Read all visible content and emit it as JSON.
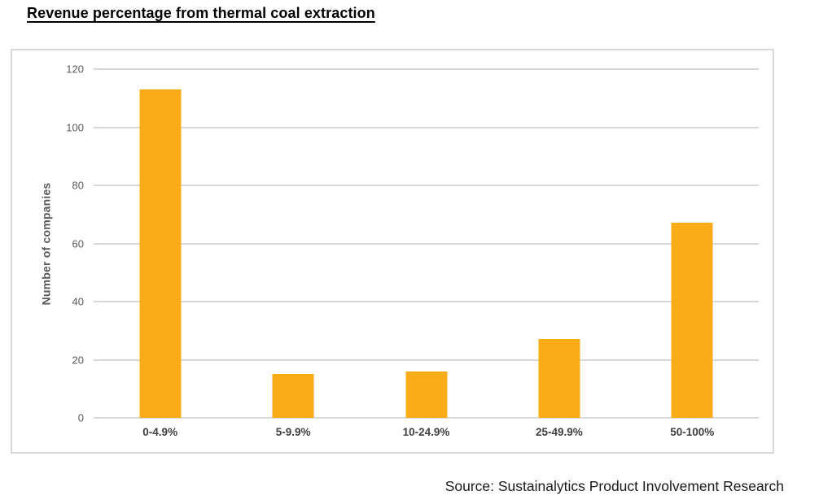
{
  "page": {
    "title": "Revenue percentage from thermal coal extraction",
    "source": "Source: Sustainalytics Product Involvement Research"
  },
  "chart_data": {
    "type": "bar",
    "title": "Revenue percentage from thermal coal extraction",
    "categories": [
      "0-4.9%",
      "5-9.9%",
      "10-24.9%",
      "25-49.9%",
      "50-100%"
    ],
    "values": [
      113,
      15,
      16,
      27,
      67
    ],
    "xlabel": "",
    "ylabel": "Number of companies",
    "ylim": [
      0,
      120
    ],
    "yticks": [
      0,
      20,
      40,
      60,
      80,
      100,
      120
    ],
    "grid": true,
    "legend": "none",
    "bar_color": "#FAAB18",
    "gridline_color": "#D9D9D9",
    "border_color": "#D9D9D9",
    "tick_label_color": "#595959",
    "category_label_color": "#404040"
  }
}
